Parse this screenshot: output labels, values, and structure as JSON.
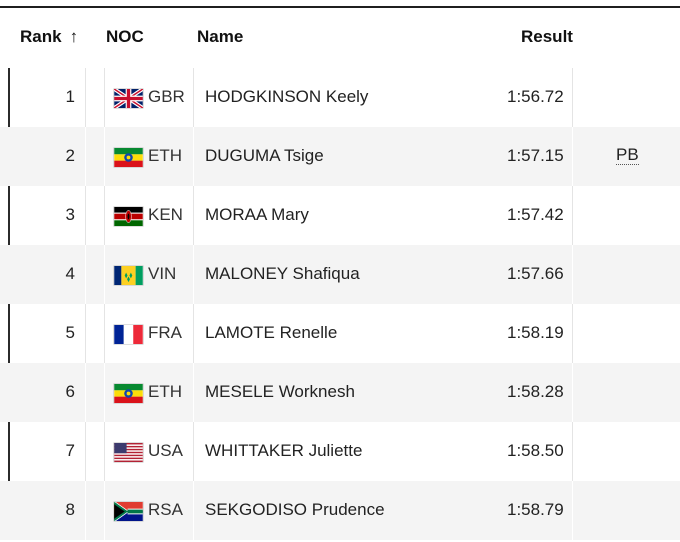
{
  "header": {
    "rank": "Rank",
    "noc": "NOC",
    "name": "Name",
    "result": "Result"
  },
  "icons": {
    "sort": "arrow-up-icon"
  },
  "rows": [
    {
      "rank": "1",
      "noc": "GBR",
      "name": "HODGKINSON Keely",
      "result": "1:56.72",
      "note": ""
    },
    {
      "rank": "2",
      "noc": "ETH",
      "name": "DUGUMA Tsige",
      "result": "1:57.15",
      "note": "PB"
    },
    {
      "rank": "3",
      "noc": "KEN",
      "name": "MORAA Mary",
      "result": "1:57.42",
      "note": ""
    },
    {
      "rank": "4",
      "noc": "VIN",
      "name": "MALONEY Shafiqua",
      "result": "1:57.66",
      "note": ""
    },
    {
      "rank": "5",
      "noc": "FRA",
      "name": "LAMOTE Renelle",
      "result": "1:58.19",
      "note": ""
    },
    {
      "rank": "6",
      "noc": "ETH",
      "name": "MESELE Worknesh",
      "result": "1:58.28",
      "note": ""
    },
    {
      "rank": "7",
      "noc": "USA",
      "name": "WHITTAKER Juliette",
      "result": "1:58.50",
      "note": ""
    },
    {
      "rank": "8",
      "noc": "RSA",
      "name": "SEKGODISO Prudence",
      "result": "1:58.79",
      "note": ""
    }
  ]
}
